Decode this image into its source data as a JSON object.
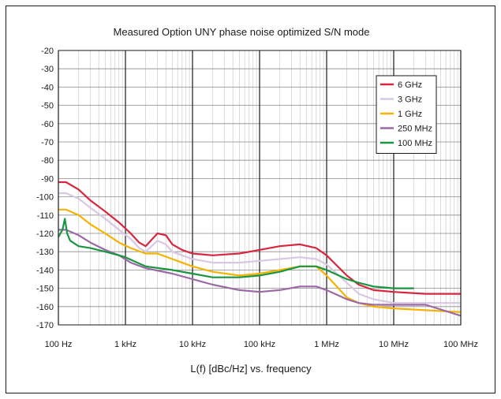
{
  "chart_data": {
    "type": "line",
    "title": "Measured Option UNY phase noise optimized S/N mode",
    "xlabel": "L(f) [dBc/Hz] vs. frequency",
    "ylabel": "",
    "x_scale": "log",
    "xlim": [
      100,
      100000000
    ],
    "ylim": [
      -170,
      -20
    ],
    "grid": true,
    "legend_position": "top-right",
    "x_ticks": [
      {
        "value": 100,
        "label": "100 Hz"
      },
      {
        "value": 1000,
        "label": "1 kHz"
      },
      {
        "value": 10000,
        "label": "10 kHz"
      },
      {
        "value": 100000,
        "label": "100 kHz"
      },
      {
        "value": 1000000,
        "label": "1 MHz"
      },
      {
        "value": 10000000,
        "label": "10 MHz"
      },
      {
        "value": 100000000,
        "label": "100 MHz"
      }
    ],
    "y_ticks": [
      {
        "value": -20,
        "label": "-20"
      },
      {
        "value": -30,
        "label": "-30"
      },
      {
        "value": -40,
        "label": "-40"
      },
      {
        "value": -50,
        "label": "-50"
      },
      {
        "value": -60,
        "label": "-60"
      },
      {
        "value": -70,
        "label": "-70"
      },
      {
        "value": -80,
        "label": "-80"
      },
      {
        "value": -90,
        "label": "-90"
      },
      {
        "value": -100,
        "label": "-100"
      },
      {
        "value": -110,
        "label": "-110"
      },
      {
        "value": -120,
        "label": "-120"
      },
      {
        "value": -130,
        "label": "-130"
      },
      {
        "value": -140,
        "label": "-140"
      },
      {
        "value": -150,
        "label": "-150"
      },
      {
        "value": -160,
        "label": "-160"
      },
      {
        "value": -170,
        "label": "-170"
      }
    ],
    "series": [
      {
        "name": "6 GHz",
        "color": "#d7263d",
        "points": [
          [
            100,
            -92
          ],
          [
            130,
            -92
          ],
          [
            200,
            -96
          ],
          [
            300,
            -102
          ],
          [
            500,
            -108
          ],
          [
            800,
            -114
          ],
          [
            1200,
            -120
          ],
          [
            1600,
            -125
          ],
          [
            2000,
            -127
          ],
          [
            3000,
            -120
          ],
          [
            4000,
            -121
          ],
          [
            5000,
            -126
          ],
          [
            7000,
            -129
          ],
          [
            10000,
            -131
          ],
          [
            20000,
            -132
          ],
          [
            50000,
            -131
          ],
          [
            100000,
            -129
          ],
          [
            200000,
            -127
          ],
          [
            400000,
            -126
          ],
          [
            700000,
            -128
          ],
          [
            1000000,
            -132
          ],
          [
            2000000,
            -143
          ],
          [
            3000000,
            -148
          ],
          [
            5000000,
            -151
          ],
          [
            10000000,
            -152
          ],
          [
            30000000,
            -153
          ],
          [
            100000000,
            -153
          ]
        ]
      },
      {
        "name": "3 GHz",
        "color": "#d9c8e3",
        "points": [
          [
            100,
            -98
          ],
          [
            130,
            -98
          ],
          [
            200,
            -101
          ],
          [
            300,
            -106
          ],
          [
            500,
            -112
          ],
          [
            800,
            -118
          ],
          [
            1200,
            -123
          ],
          [
            1600,
            -128
          ],
          [
            2000,
            -130
          ],
          [
            3000,
            -124
          ],
          [
            4000,
            -126
          ],
          [
            5000,
            -130
          ],
          [
            7000,
            -132
          ],
          [
            10000,
            -134
          ],
          [
            20000,
            -136
          ],
          [
            50000,
            -136
          ],
          [
            100000,
            -135
          ],
          [
            200000,
            -134
          ],
          [
            400000,
            -133
          ],
          [
            700000,
            -134
          ],
          [
            1000000,
            -137
          ],
          [
            2000000,
            -147
          ],
          [
            3000000,
            -153
          ],
          [
            5000000,
            -156
          ],
          [
            10000000,
            -158
          ],
          [
            30000000,
            -158
          ],
          [
            100000000,
            -158
          ]
        ]
      },
      {
        "name": "1 GHz",
        "color": "#f5b300",
        "points": [
          [
            100,
            -107
          ],
          [
            130,
            -107
          ],
          [
            200,
            -110
          ],
          [
            300,
            -115
          ],
          [
            500,
            -120
          ],
          [
            800,
            -125
          ],
          [
            1200,
            -128
          ],
          [
            2000,
            -131
          ],
          [
            3000,
            -131
          ],
          [
            5000,
            -134
          ],
          [
            10000,
            -138
          ],
          [
            20000,
            -141
          ],
          [
            50000,
            -143
          ],
          [
            100000,
            -142
          ],
          [
            200000,
            -140
          ],
          [
            400000,
            -138
          ],
          [
            700000,
            -138
          ],
          [
            1000000,
            -143
          ],
          [
            2000000,
            -155
          ],
          [
            3000000,
            -158
          ],
          [
            5000000,
            -160
          ],
          [
            10000000,
            -161
          ],
          [
            30000000,
            -162
          ],
          [
            100000000,
            -163
          ]
        ]
      },
      {
        "name": "250 MHz",
        "color": "#9b6aa5",
        "points": [
          [
            100,
            -118
          ],
          [
            130,
            -118
          ],
          [
            200,
            -121
          ],
          [
            300,
            -125
          ],
          [
            500,
            -129
          ],
          [
            800,
            -132
          ],
          [
            1200,
            -136
          ],
          [
            2000,
            -139
          ],
          [
            5000,
            -142
          ],
          [
            10000,
            -145
          ],
          [
            20000,
            -148
          ],
          [
            50000,
            -151
          ],
          [
            100000,
            -152
          ],
          [
            200000,
            -151
          ],
          [
            400000,
            -149
          ],
          [
            700000,
            -149
          ],
          [
            1000000,
            -151
          ],
          [
            2000000,
            -156
          ],
          [
            3000000,
            -158
          ],
          [
            5000000,
            -159
          ],
          [
            10000000,
            -159
          ],
          [
            30000000,
            -159
          ],
          [
            100000000,
            -165
          ]
        ]
      },
      {
        "name": "100 MHz",
        "color": "#1a9641",
        "points": [
          [
            100,
            -122
          ],
          [
            115,
            -118
          ],
          [
            125,
            -112
          ],
          [
            135,
            -120
          ],
          [
            150,
            -124
          ],
          [
            200,
            -127
          ],
          [
            300,
            -128
          ],
          [
            500,
            -130
          ],
          [
            800,
            -132
          ],
          [
            1000,
            -133
          ],
          [
            1500,
            -136
          ],
          [
            2000,
            -138
          ],
          [
            5000,
            -140
          ],
          [
            10000,
            -142
          ],
          [
            20000,
            -144
          ],
          [
            50000,
            -144
          ],
          [
            100000,
            -143
          ],
          [
            200000,
            -141
          ],
          [
            400000,
            -138
          ],
          [
            700000,
            -138
          ],
          [
            1000000,
            -140
          ],
          [
            2000000,
            -145
          ],
          [
            3000000,
            -147
          ],
          [
            5000000,
            -149
          ],
          [
            10000000,
            -150
          ],
          [
            20000000,
            -150
          ]
        ]
      }
    ]
  }
}
